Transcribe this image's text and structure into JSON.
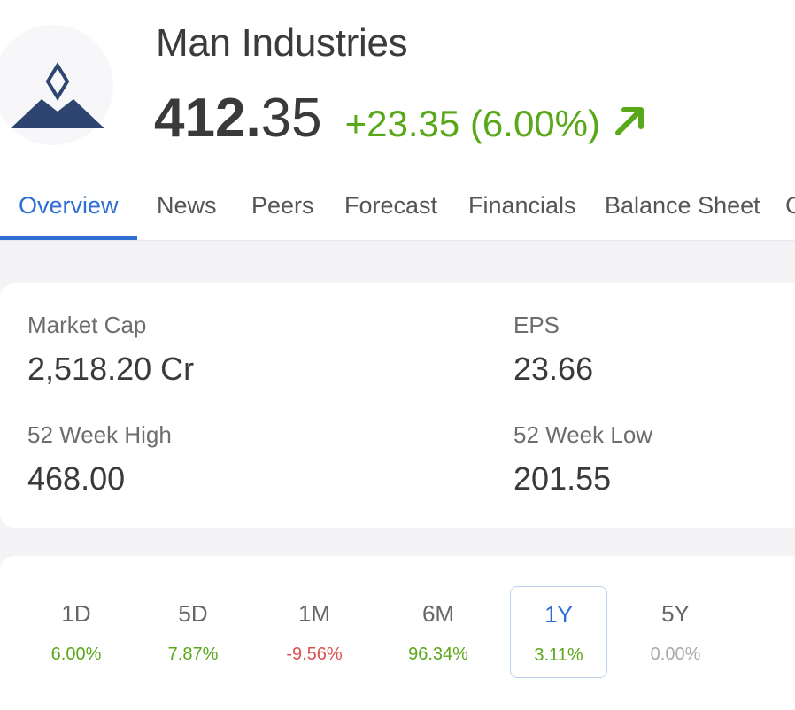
{
  "company": {
    "name": "Man Industries",
    "logo_icon": "man-industries-logo-icon"
  },
  "quote": {
    "price_integer": "412.",
    "price_decimal": "35",
    "change": "+23.35 (6.00%)",
    "trend_icon": "arrow-up-right-icon",
    "change_color": "#59a819"
  },
  "tabs": [
    {
      "label": "Overview",
      "active": true
    },
    {
      "label": "News"
    },
    {
      "label": "Peers"
    },
    {
      "label": "Forecast"
    },
    {
      "label": "Financials"
    },
    {
      "label": "Balance Sheet"
    },
    {
      "label": "C"
    }
  ],
  "stats": {
    "market_cap": {
      "label": "Market Cap",
      "value": "2,518.20 Cr"
    },
    "eps": {
      "label": "EPS",
      "value": "23.66"
    },
    "week52_high": {
      "label": "52 Week High",
      "value": "468.00"
    },
    "week52_low": {
      "label": "52 Week Low",
      "value": "201.55"
    }
  },
  "periods": [
    {
      "label": "1D",
      "change": "6.00%",
      "tone": "pos"
    },
    {
      "label": "5D",
      "change": "7.87%",
      "tone": "pos"
    },
    {
      "label": "1M",
      "change": "-9.56%",
      "tone": "neg"
    },
    {
      "label": "6M",
      "change": "96.34%",
      "tone": "pos"
    },
    {
      "label": "1Y",
      "change": "3.11%",
      "tone": "pos",
      "active": true
    },
    {
      "label": "5Y",
      "change": "0.00%",
      "tone": "zero"
    }
  ],
  "colors": {
    "accent": "#2f6fd3",
    "positive": "#59a819",
    "negative": "#d9534f",
    "neutral": "#aaaaaa",
    "logo": "#2d4570"
  }
}
